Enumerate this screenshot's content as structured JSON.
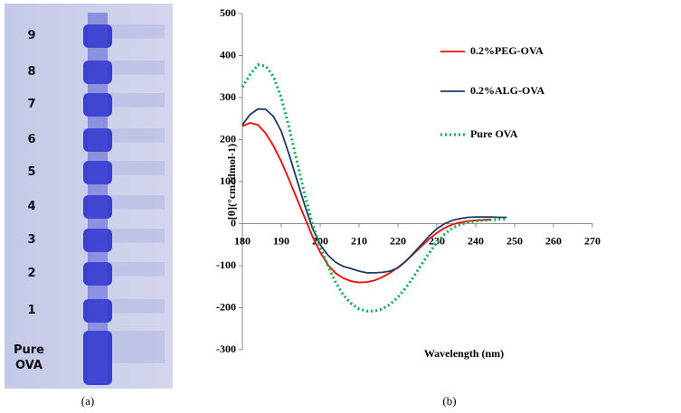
{
  "gel": {
    "lane_labels": [
      "9",
      "8",
      "7",
      "6",
      "5",
      "4",
      "3",
      "2",
      "1",
      "Pure OVA"
    ],
    "caption": "(a)"
  },
  "chart_caption": "(b)",
  "chart_data": {
    "type": "line",
    "y_label": "[θ](°cm2dmol-1)",
    "x_label": "Wavelength (nm)",
    "x": [
      180,
      182,
      184,
      186,
      188,
      190,
      192,
      194,
      196,
      198,
      200,
      202,
      204,
      206,
      208,
      210,
      212,
      214,
      216,
      218,
      220,
      222,
      224,
      226,
      228,
      230,
      232,
      234,
      236,
      238,
      240,
      242,
      244,
      246,
      248
    ],
    "series": [
      {
        "name": "0.2%PEG-OVA",
        "color": "#ff0000",
        "dash": "solid",
        "values": [
          232,
          240,
          235,
          215,
          185,
          148,
          105,
          60,
          15,
          -30,
          -68,
          -98,
          -118,
          -130,
          -137,
          -140,
          -139,
          -135,
          -127,
          -117,
          -104,
          -89,
          -72,
          -54,
          -37,
          -22,
          -10,
          -2,
          3,
          6,
          8,
          9,
          10,
          null,
          null
        ]
      },
      {
        "name": "0.2%ALG-OVA",
        "color": "#1f3864",
        "dash": "solid",
        "values": [
          235,
          260,
          273,
          272,
          255,
          220,
          165,
          105,
          45,
          -10,
          -50,
          -75,
          -92,
          -102,
          -107,
          -113,
          -117,
          -117,
          -116,
          -113,
          -105,
          -90,
          -70,
          -50,
          -30,
          -12,
          0,
          8,
          12,
          15,
          16,
          16,
          16,
          15,
          15
        ]
      },
      {
        "name": "Pure OVA",
        "color": "#00b050",
        "dash": "dotted",
        "values": [
          325,
          355,
          378,
          375,
          350,
          300,
          230,
          150,
          70,
          0,
          -55,
          -100,
          -140,
          -170,
          -190,
          -203,
          -208,
          -208,
          -203,
          -192,
          -175,
          -153,
          -127,
          -98,
          -70,
          -45,
          -25,
          -10,
          -2,
          3,
          6,
          8,
          9,
          10,
          10
        ]
      }
    ],
    "xlim": [
      180,
      270
    ],
    "xticks": [
      180,
      190,
      200,
      210,
      220,
      230,
      240,
      250,
      260,
      270
    ],
    "ylim": [
      -300,
      500
    ],
    "yticks": [
      -300,
      -200,
      -100,
      0,
      100,
      200,
      300,
      400,
      500
    ],
    "legend": "upper right"
  }
}
